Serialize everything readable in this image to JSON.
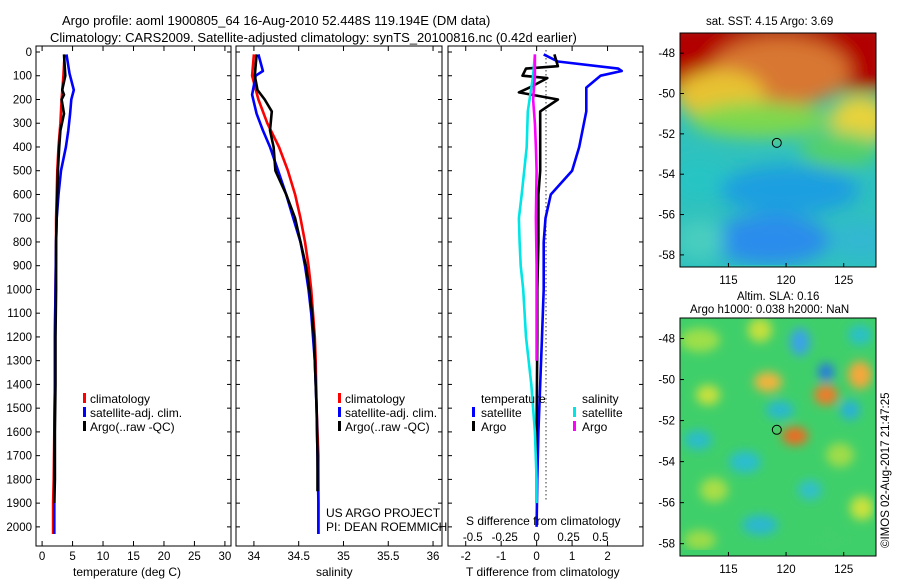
{
  "title_line1": "Argo profile: aoml 1900805_64 16-Aug-2010 52.448S 119.194E (DM data)",
  "title_line2": "Climatology: CARS2009. Satellite-adjusted climatology: synTS_20100816.nc (0.42d earlier)",
  "depth_ticks": [
    0,
    100,
    200,
    300,
    400,
    500,
    600,
    700,
    800,
    900,
    1000,
    1100,
    1200,
    1300,
    1400,
    1500,
    1600,
    1700,
    1800,
    1900,
    2000
  ],
  "colors": {
    "climatology": "#ff0000",
    "satellite": "#0000ff",
    "argo": "#000000",
    "salinity_sat": "#00e5e5",
    "salinity_argo": "#ff00ff"
  },
  "chart_data": [
    {
      "type": "line",
      "xlabel": "temperature (deg C)",
      "xlim": [
        -1,
        31
      ],
      "ylim": [
        2050,
        0
      ],
      "xticks": [
        0,
        5,
        10,
        15,
        20,
        25,
        30
      ],
      "legend_entries": [
        "climatology",
        "satellite-adj. clim.",
        "Argo(..raw -QC)"
      ],
      "series": [
        {
          "name": "climatology",
          "color": "#ff0000",
          "points": [
            [
              3.7,
              10
            ],
            [
              3.5,
              100
            ],
            [
              3.2,
              200
            ],
            [
              3.0,
              300
            ],
            [
              2.7,
              400
            ],
            [
              2.5,
              500
            ],
            [
              2.4,
              600
            ],
            [
              2.3,
              700
            ],
            [
              2.3,
              800
            ],
            [
              2.2,
              1000
            ],
            [
              2.1,
              1200
            ],
            [
              2.1,
              1400
            ],
            [
              2.0,
              1600
            ],
            [
              1.9,
              1800
            ],
            [
              1.8,
              1900
            ],
            [
              1.8,
              2030
            ]
          ]
        },
        {
          "name": "satellite-adj. clim.",
          "color": "#0000ff",
          "points": [
            [
              4.0,
              10
            ],
            [
              4.5,
              90
            ],
            [
              5.2,
              160
            ],
            [
              4.8,
              200
            ],
            [
              4.6,
              260
            ],
            [
              4.3,
              330
            ],
            [
              3.9,
              400
            ],
            [
              3.1,
              500
            ],
            [
              2.7,
              600
            ],
            [
              2.4,
              700
            ],
            [
              2.3,
              800
            ],
            [
              2.2,
              1000
            ],
            [
              2.1,
              1200
            ],
            [
              2.1,
              1400
            ],
            [
              2.0,
              1600
            ],
            [
              2.0,
              1800
            ],
            [
              2.0,
              2000
            ],
            [
              2.0,
              2030
            ]
          ]
        },
        {
          "name": "Argo(..raw -QC)",
          "color": "#000000",
          "points": [
            [
              3.6,
              10
            ],
            [
              3.8,
              100
            ],
            [
              3.3,
              160
            ],
            [
              3.6,
              180
            ],
            [
              3.2,
              200
            ],
            [
              3.6,
              260
            ],
            [
              3.0,
              330
            ],
            [
              2.8,
              400
            ],
            [
              2.6,
              500
            ],
            [
              2.5,
              600
            ],
            [
              2.4,
              700
            ],
            [
              2.3,
              800
            ],
            [
              2.3,
              1000
            ],
            [
              2.2,
              1200
            ],
            [
              2.2,
              1400
            ],
            [
              2.1,
              1600
            ],
            [
              2.1,
              1800
            ],
            [
              2.0,
              1900
            ]
          ]
        }
      ]
    },
    {
      "type": "line",
      "xlabel": "salinity",
      "xlim": [
        33.8,
        36.1
      ],
      "ylim": [
        2050,
        0
      ],
      "xticks": [
        34,
        34.5,
        35,
        35.5,
        36
      ],
      "legend_entries": [
        "climatology",
        "satellite-adj. clim.",
        "Argo(..raw -QC)"
      ],
      "notes": [
        "US ARGO PROJECT",
        "PI: DEAN ROEMMICH"
      ],
      "series": [
        {
          "name": "climatology",
          "color": "#ff0000",
          "points": [
            [
              34.0,
              10
            ],
            [
              33.98,
              100
            ],
            [
              34.05,
              200
            ],
            [
              34.15,
              300
            ],
            [
              34.28,
              400
            ],
            [
              34.38,
              500
            ],
            [
              34.46,
              600
            ],
            [
              34.52,
              700
            ],
            [
              34.57,
              800
            ],
            [
              34.61,
              900
            ],
            [
              34.64,
              1000
            ],
            [
              34.66,
              1100
            ],
            [
              34.68,
              1200
            ],
            [
              34.69,
              1300
            ],
            [
              34.7,
              1500
            ],
            [
              34.72,
              1700
            ],
            [
              34.72,
              1900
            ],
            [
              34.72,
              2030
            ]
          ]
        },
        {
          "name": "satellite-adj. clim.",
          "color": "#0000ff",
          "points": [
            [
              34.05,
              10
            ],
            [
              34.1,
              80
            ],
            [
              34.02,
              100
            ],
            [
              33.98,
              180
            ],
            [
              34.03,
              260
            ],
            [
              34.1,
              330
            ],
            [
              34.18,
              400
            ],
            [
              34.27,
              500
            ],
            [
              34.36,
              600
            ],
            [
              34.44,
              700
            ],
            [
              34.52,
              800
            ],
            [
              34.57,
              900
            ],
            [
              34.61,
              1000
            ],
            [
              34.64,
              1100
            ],
            [
              34.66,
              1200
            ],
            [
              34.68,
              1300
            ],
            [
              34.7,
              1500
            ],
            [
              34.71,
              1700
            ],
            [
              34.72,
              1900
            ],
            [
              34.72,
              2030
            ]
          ]
        },
        {
          "name": "Argo(..raw -QC)",
          "color": "#000000",
          "points": [
            [
              34.03,
              10
            ],
            [
              34.01,
              100
            ],
            [
              34.04,
              160
            ],
            [
              34.12,
              200
            ],
            [
              34.2,
              250
            ],
            [
              34.18,
              330
            ],
            [
              34.22,
              400
            ],
            [
              34.24,
              500
            ],
            [
              34.36,
              600
            ],
            [
              34.46,
              700
            ],
            [
              34.52,
              800
            ],
            [
              34.58,
              900
            ],
            [
              34.62,
              1000
            ],
            [
              34.65,
              1100
            ],
            [
              34.67,
              1200
            ],
            [
              34.68,
              1300
            ],
            [
              34.7,
              1500
            ],
            [
              34.71,
              1700
            ],
            [
              34.71,
              1850
            ]
          ]
        }
      ]
    },
    {
      "type": "line",
      "xlabel": "T difference from climatology",
      "xlabel_top": "S difference from climatology",
      "xlim": [
        -2.5,
        3
      ],
      "ylim": [
        2050,
        0
      ],
      "xticks": [
        -2,
        -1,
        0,
        1,
        2
      ],
      "xticks_top": [
        "-0.5",
        "-0.25",
        "0",
        "0.25",
        "0.5"
      ],
      "legend_entries": [
        "temperature",
        "salinity",
        "satellite",
        "Argo"
      ],
      "series": [
        {
          "name": "temperature satellite",
          "color": "#0000ff",
          "points": [
            [
              0.2,
              10
            ],
            [
              0.6,
              40
            ],
            [
              2.3,
              70
            ],
            [
              2.4,
              80
            ],
            [
              1.8,
              100
            ],
            [
              1.4,
              150
            ],
            [
              1.4,
              250
            ],
            [
              1.2,
              400
            ],
            [
              1.0,
              500
            ],
            [
              0.4,
              600
            ],
            [
              0.25,
              700
            ],
            [
              0.2,
              800
            ],
            [
              0.2,
              1000
            ],
            [
              0.15,
              1200
            ],
            [
              0.1,
              1400
            ],
            [
              0.05,
              1600
            ],
            [
              0.02,
              1800
            ],
            [
              0.0,
              2000
            ]
          ]
        },
        {
          "name": "temperature Argo",
          "color": "#000000",
          "points": [
            [
              0.5,
              10
            ],
            [
              0.6,
              60
            ],
            [
              -0.3,
              70
            ],
            [
              -0.4,
              100
            ],
            [
              0.3,
              110
            ],
            [
              -0.2,
              150
            ],
            [
              -0.5,
              170
            ],
            [
              0.6,
              200
            ],
            [
              0.1,
              250
            ],
            [
              0.1,
              330
            ],
            [
              0.1,
              400
            ],
            [
              0.1,
              500
            ],
            [
              0.05,
              600
            ],
            [
              0.05,
              700
            ],
            [
              0.05,
              800
            ],
            [
              0.02,
              1000
            ],
            [
              0.02,
              1200
            ],
            [
              0.0,
              1600
            ],
            [
              0.0,
              1900
            ]
          ]
        },
        {
          "name": "salinity satellite",
          "color": "#00e5e5",
          "points": [
            [
              -0.05,
              10
            ],
            [
              -0.1,
              100
            ],
            [
              -0.25,
              250
            ],
            [
              -0.28,
              400
            ],
            [
              -0.35,
              500
            ],
            [
              -0.42,
              600
            ],
            [
              -0.5,
              700
            ],
            [
              -0.48,
              800
            ],
            [
              -0.45,
              900
            ],
            [
              -0.38,
              1000
            ],
            [
              -0.3,
              1200
            ],
            [
              -0.15,
              1400
            ],
            [
              -0.05,
              1600
            ],
            [
              0.0,
              1800
            ],
            [
              0.0,
              1900
            ]
          ]
        },
        {
          "name": "salinity Argo",
          "color": "#ff00ff",
          "points": [
            [
              -0.05,
              10
            ],
            [
              -0.05,
              100
            ],
            [
              -0.1,
              200
            ],
            [
              -0.05,
              300
            ],
            [
              -0.02,
              400
            ],
            [
              0.0,
              500
            ],
            [
              -0.02,
              700
            ],
            [
              0.0,
              900
            ],
            [
              0.0,
              1100
            ],
            [
              0.0,
              1300
            ]
          ]
        }
      ]
    },
    {
      "type": "heatmap",
      "title": "sat. SST: 4.15 Argo: 3.69",
      "xticks": [
        115,
        120,
        125
      ],
      "yticks": [
        -48,
        -50,
        -52,
        -54,
        -56,
        -58
      ],
      "marker": {
        "lon": 119.194,
        "lat": -52.448
      }
    },
    {
      "type": "heatmap",
      "title_line1": "Altim. SLA: 0.16",
      "title_line2": "Argo h1000: 0.038 h2000: NaN",
      "xticks": [
        115,
        120,
        125
      ],
      "yticks": [
        -48,
        -50,
        -52,
        -54,
        -56,
        -58
      ],
      "marker": {
        "lon": 119.194,
        "lat": -52.448
      }
    }
  ],
  "credit": "©IMOS 02-Aug-2017 21:47:25"
}
